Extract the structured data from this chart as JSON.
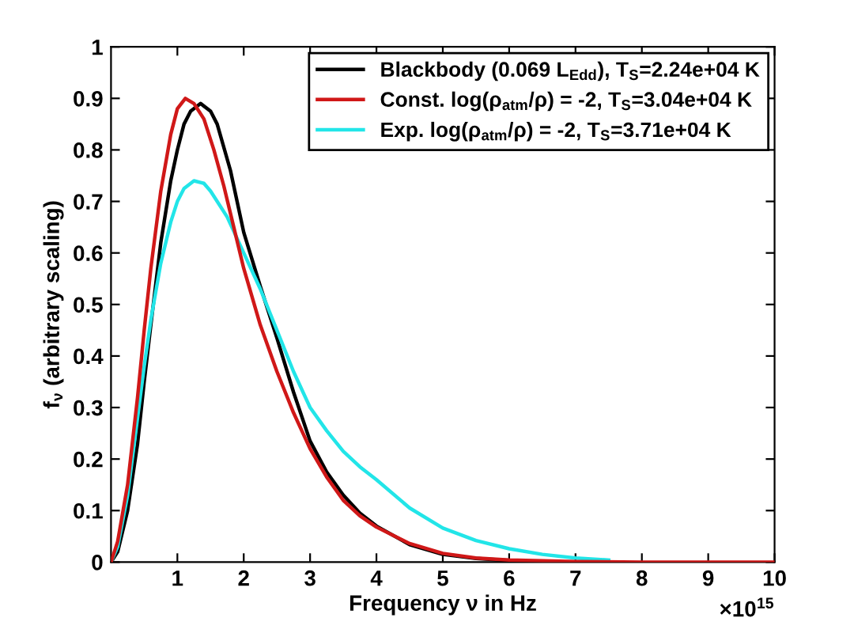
{
  "chart_data": {
    "type": "line",
    "xlabel": "Frequency ν in Hz",
    "ylabel": "f$_{ν}$ (arbitrary scaling)",
    "annotations": [
      "×10$^{15}$"
    ],
    "xlim": [
      0,
      10
    ],
    "xticks": [
      1,
      2,
      3,
      4,
      5,
      6,
      7,
      8,
      9,
      10
    ],
    "ylim": [
      0,
      1
    ],
    "yticks": [
      0,
      0.1,
      0.2,
      0.3,
      0.4,
      0.5,
      0.6,
      0.7,
      0.8,
      0.9,
      1
    ],
    "grid": false,
    "legend": "top right",
    "marker": "none",
    "line_style": "solid",
    "series": [
      {
        "name": "Blackbody (0.069 L$_{Edd}$), T$_{S}$=2.24e+04 K",
        "color": "#000000",
        "x": [
          0,
          0.1,
          0.25,
          0.4,
          0.5,
          0.6,
          0.75,
          0.9,
          1.0,
          1.1,
          1.2,
          1.35,
          1.5,
          1.6,
          1.8,
          2.0,
          2.25,
          2.5,
          2.75,
          3.0,
          3.25,
          3.5,
          3.75,
          4.0,
          4.5,
          5.0,
          5.5,
          6.0
        ],
        "values": [
          0,
          0.02,
          0.1,
          0.23,
          0.35,
          0.46,
          0.62,
          0.74,
          0.8,
          0.85,
          0.875,
          0.89,
          0.875,
          0.85,
          0.76,
          0.64,
          0.535,
          0.435,
          0.33,
          0.235,
          0.175,
          0.13,
          0.095,
          0.07,
          0.034,
          0.015,
          0.007,
          0.003
        ]
      },
      {
        "name": "Const. log(ρ$_{atm}$/ρ) = -2, T$_{S}$=3.04e+04 K",
        "color": "#d01818",
        "x": [
          0,
          0.1,
          0.25,
          0.4,
          0.5,
          0.6,
          0.75,
          0.9,
          1.0,
          1.12,
          1.25,
          1.4,
          1.55,
          1.7,
          1.85,
          2.0,
          2.25,
          2.5,
          2.75,
          3.0,
          3.25,
          3.5,
          3.75,
          4.0,
          4.5,
          5.0,
          5.5,
          6.0,
          7.0,
          8.0,
          10.0
        ],
        "values": [
          0,
          0.04,
          0.15,
          0.32,
          0.45,
          0.57,
          0.72,
          0.83,
          0.88,
          0.9,
          0.89,
          0.86,
          0.8,
          0.73,
          0.65,
          0.57,
          0.46,
          0.37,
          0.29,
          0.22,
          0.165,
          0.12,
          0.09,
          0.068,
          0.036,
          0.017,
          0.008,
          0.004,
          0.001,
          0,
          0
        ]
      },
      {
        "name": "Exp. log(ρ$_{atm}$/ρ) = -2, T$_{S}$=3.71e+04 K",
        "color": "#22e5e8",
        "x": [
          0,
          0.1,
          0.25,
          0.4,
          0.5,
          0.6,
          0.75,
          0.9,
          1.0,
          1.1,
          1.25,
          1.4,
          1.5,
          1.75,
          2.0,
          2.25,
          2.5,
          2.75,
          3.0,
          3.25,
          3.5,
          3.75,
          4.0,
          4.5,
          5.0,
          5.5,
          6.0,
          6.5,
          7.0,
          7.5
        ],
        "values": [
          0,
          0.03,
          0.13,
          0.28,
          0.38,
          0.47,
          0.58,
          0.66,
          0.7,
          0.725,
          0.74,
          0.735,
          0.72,
          0.67,
          0.6,
          0.53,
          0.45,
          0.37,
          0.3,
          0.255,
          0.215,
          0.185,
          0.16,
          0.105,
          0.066,
          0.042,
          0.026,
          0.015,
          0.008,
          0.004
        ]
      }
    ]
  }
}
